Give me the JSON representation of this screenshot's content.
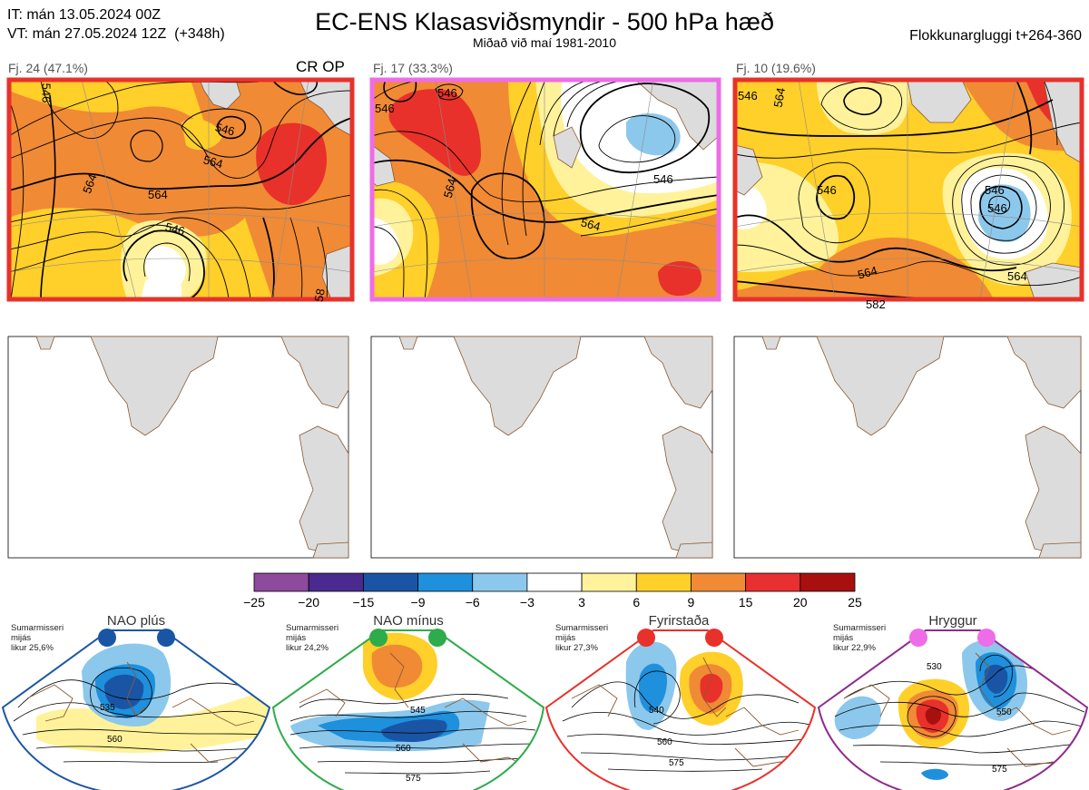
{
  "header": {
    "it_line": "IT: mán 13.05.2024 00Z",
    "vt_line": "VT: mán 27.05.2024 12Z  (+348h)",
    "title": "EC-ENS Klasasviðsmyndir - 500 hPa hæð",
    "subtitle": "Miðað við maí 1981-2010",
    "window": "Flokkunargluggi t+264-360"
  },
  "chart_data": {
    "type": "heatmap",
    "colorbar": {
      "ticks": [
        "−25",
        "−20",
        "−15",
        "−9",
        "−6",
        "−3",
        "3",
        "6",
        "9",
        "15",
        "20",
        "25"
      ],
      "colors": [
        "#8e4a9c",
        "#4a2a8f",
        "#1a55a5",
        "#1e90dc",
        "#8cc8ec",
        "#ffffff",
        "#fff29a",
        "#ffcf2a",
        "#f08a35",
        "#e83030",
        "#a81010"
      ]
    },
    "clusters": [
      {
        "label": "Fj. 24 (47.1%)",
        "tag": "CR OP",
        "contour_labels": [
          "546",
          "564",
          "564",
          "546",
          "564",
          "546",
          "58"
        ]
      },
      {
        "label": "Fj. 17 (33.3%)",
        "tag": "",
        "contour_labels": [
          "546",
          "564",
          "546",
          "564",
          "546"
        ]
      },
      {
        "label": "Fj. 10 (19.6%)",
        "tag": "",
        "contour_labels": [
          "546",
          "564",
          "546",
          "546",
          "546",
          "564",
          "564",
          "582"
        ]
      }
    ],
    "regimes": [
      {
        "name": "NAO plús",
        "note": [
          "Sumarmisseri",
          "mijás",
          "likur 25,6%"
        ],
        "contour_labels": [
          "535",
          "560"
        ]
      },
      {
        "name": "NAO mínus",
        "note": [
          "Sumarmisseri",
          "mijás",
          "likur 24,2%"
        ],
        "contour_labels": [
          "545",
          "560",
          "575"
        ]
      },
      {
        "name": "Fyrirstaða",
        "note": [
          "Sumarmisseri",
          "mijás",
          "likur 27,3%"
        ],
        "contour_labels": [
          "540",
          "560",
          "575"
        ]
      },
      {
        "name": "Hryggur",
        "note": [
          "Sumarmisseri",
          "mijás",
          "likur 22,9%"
        ],
        "contour_labels": [
          "530",
          "550",
          "575"
        ]
      }
    ]
  },
  "colors": {
    "red": "#e8312a",
    "magenta": "#ee6ce8",
    "blue": "#1a55a5",
    "green": "#2eab4a",
    "purple": "#8e2a8f",
    "land": "#dcdcdc",
    "coast": "#8a5a34"
  }
}
